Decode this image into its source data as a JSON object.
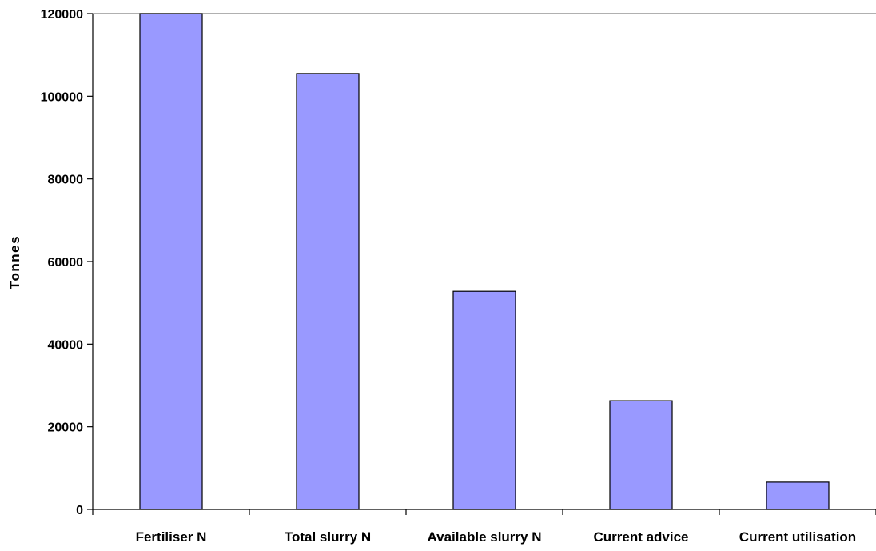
{
  "colors": {
    "bar_fill": "#9999ff",
    "bar_stroke": "#000000",
    "axis": "#000000",
    "background": "#ffffff"
  },
  "chart_data": {
    "type": "bar",
    "title": "",
    "xlabel": "",
    "ylabel": "Tonnes",
    "categories": [
      "Fertiliser N",
      "Total slurry N",
      "Available slurry N",
      "Current advice",
      "Current utilisation"
    ],
    "values": [
      120000,
      105500,
      52800,
      26300,
      6600
    ],
    "ylim": [
      0,
      120000
    ],
    "yticks": [
      0,
      20000,
      40000,
      60000,
      80000,
      100000,
      120000
    ],
    "ytick_labels": [
      "0",
      "20000",
      "40000",
      "60000",
      "80000",
      "100000",
      "120000"
    ],
    "grid": false,
    "legend": "none"
  }
}
